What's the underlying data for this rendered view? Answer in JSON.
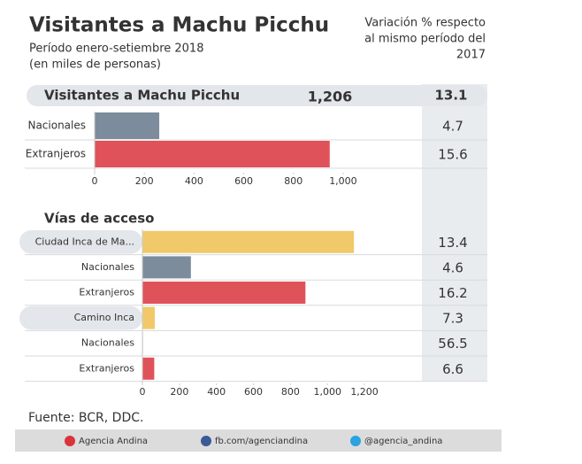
{
  "title": "Visitantes a Machu Picchu",
  "subtitle": [
    "Período enero-setiembre 2018",
    "(en miles de personas)"
  ],
  "variation_header": [
    "Variación % respecto",
    "al mismo período del",
    "2017"
  ],
  "source": "Fuente: BCR, DDC.",
  "footer": [
    "Agencia Andina",
    "fb.com/agenciandina",
    "@agencia_andina"
  ],
  "chart_data": [
    {
      "type": "bar",
      "orientation": "horizontal",
      "title": "Visitantes a Machu Picchu",
      "total": "1,206",
      "title_variation": 13.1,
      "categories": [
        "Nacionales",
        "Extranjeros"
      ],
      "values": [
        260,
        946
      ],
      "colors": [
        "#7d8c9c",
        "#e0525a"
      ],
      "variation": [
        4.7,
        15.6
      ],
      "highlight": [
        false,
        false
      ],
      "xlim": [
        0,
        1050
      ],
      "xticks": [
        0,
        200,
        400,
        600,
        800,
        {
          "value": 1000,
          "label": "1,000"
        }
      ]
    },
    {
      "type": "bar",
      "orientation": "horizontal",
      "title": "Vías de acceso",
      "categories": [
        "Ciudad Inca de Ma...",
        "Nacionales",
        "Extranjeros",
        "Camino Inca",
        "Nacionales",
        "Extranjeros"
      ],
      "values": [
        1143,
        262,
        881,
        67,
        3,
        64
      ],
      "colors": [
        "#f1c96a",
        "#7d8c9c",
        "#e0525a",
        "#f1c96a",
        "#7d8c9c",
        "#e0525a"
      ],
      "variation": [
        13.4,
        4.6,
        16.2,
        7.3,
        56.5,
        6.6
      ],
      "highlight": [
        true,
        false,
        false,
        true,
        false,
        false
      ],
      "xlim": [
        0,
        1300
      ],
      "xticks": [
        0,
        200,
        400,
        600,
        800,
        {
          "value": 1000,
          "label": "1,000"
        },
        {
          "value": 1200,
          "label": "1,200"
        }
      ]
    }
  ]
}
